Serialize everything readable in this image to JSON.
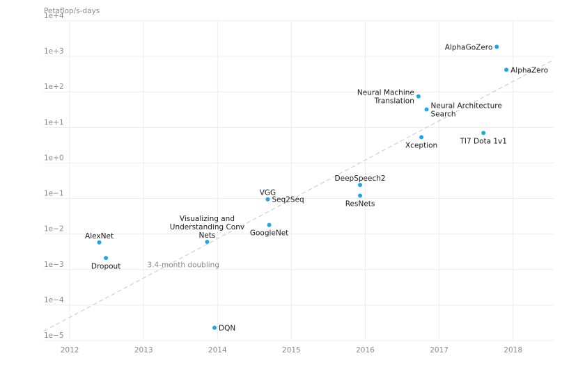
{
  "chart_data": {
    "type": "scatter",
    "ylabel": "Petaflop/s-days",
    "y_scale": "log",
    "ylim": [
      1e-05,
      10000
    ],
    "xlim": [
      2011.65,
      2018.55
    ],
    "x_ticks": [
      {
        "value": 2012,
        "label": "2012"
      },
      {
        "value": 2013,
        "label": "2013"
      },
      {
        "value": 2014,
        "label": "2014"
      },
      {
        "value": 2015,
        "label": "2015"
      },
      {
        "value": 2016,
        "label": "2016"
      },
      {
        "value": 2017,
        "label": "2017"
      },
      {
        "value": 2018,
        "label": "2018"
      }
    ],
    "y_ticks": [
      {
        "exp": -5,
        "label": "1e−5"
      },
      {
        "exp": -4,
        "label": "1e−4"
      },
      {
        "exp": -3,
        "label": "1e−3"
      },
      {
        "exp": -2,
        "label": "1e−2"
      },
      {
        "exp": -1,
        "label": "1e−1"
      },
      {
        "exp": 0,
        "label": "1e+0"
      },
      {
        "exp": 1,
        "label": "1e+1"
      },
      {
        "exp": 2,
        "label": "1e+2"
      },
      {
        "exp": 3,
        "label": "1e+3"
      },
      {
        "exp": 4,
        "label": "1e+4"
      }
    ],
    "point_color": "#19a8e8",
    "trend_color": "#cfcfcf",
    "points": [
      {
        "x": 2012.4,
        "y": 0.0058,
        "lines": [
          "AlexNet"
        ],
        "pos": "above"
      },
      {
        "x": 2012.49,
        "y": 0.0021,
        "lines": [
          "Dropout"
        ],
        "pos": "below"
      },
      {
        "x": 2013.86,
        "y": 0.006,
        "lines": [
          "Visualizing and",
          "Understanding Conv",
          "Nets"
        ],
        "pos": "above"
      },
      {
        "x": 2013.96,
        "y": 2.3e-05,
        "lines": [
          "DQN"
        ],
        "pos": "right"
      },
      {
        "x": 2014.68,
        "y": 0.095,
        "lines": [
          "VGG"
        ],
        "pos": "above"
      },
      {
        "x": 2014.68,
        "y": 0.095,
        "lines": [
          "Seq2Seq"
        ],
        "pos": "right"
      },
      {
        "x": 2014.7,
        "y": 0.018,
        "lines": [
          "GoogleNet"
        ],
        "pos": "below"
      },
      {
        "x": 2015.93,
        "y": 0.24,
        "lines": [
          "DeepSpeech2"
        ],
        "pos": "above"
      },
      {
        "x": 2015.93,
        "y": 0.12,
        "lines": [
          "ResNets"
        ],
        "pos": "below"
      },
      {
        "x": 2016.72,
        "y": 75,
        "lines": [
          "Neural Machine",
          "Translation"
        ],
        "pos": "left"
      },
      {
        "x": 2016.83,
        "y": 32,
        "lines": [
          "Neural Architecture",
          "Search"
        ],
        "pos": "right"
      },
      {
        "x": 2016.76,
        "y": 5.3,
        "lines": [
          "Xception"
        ],
        "pos": "below"
      },
      {
        "x": 2017.6,
        "y": 7,
        "lines": [
          "TI7 Dota 1v1"
        ],
        "pos": "below"
      },
      {
        "x": 2017.78,
        "y": 1860,
        "lines": [
          "AlphaGoZero"
        ],
        "pos": "left"
      },
      {
        "x": 2017.91,
        "y": 420,
        "lines": [
          "AlphaZero"
        ],
        "pos": "right"
      }
    ],
    "trend": {
      "x0": 2011.65,
      "y0": 1.85e-05,
      "x1": 2018.55,
      "y1": 800
    },
    "annotation": {
      "text": "3.4-month doubling",
      "x": 2013.05,
      "y": 0.00115
    }
  }
}
